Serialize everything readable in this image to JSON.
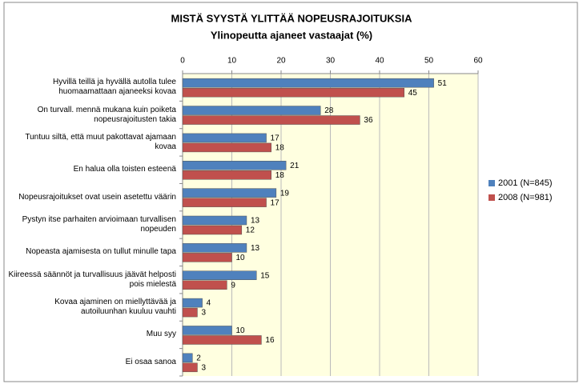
{
  "chart_data": {
    "type": "bar",
    "orientation": "horizontal",
    "title": "MISTÄ SYYSTÄ YLITTÄÄ NOPEUSRAJOITUKSIA",
    "subtitle": "Ylinopeutta ajaneet vastaajat (%)",
    "categories": [
      "Hyvillä teillä ja hyvällä autolla tulee huomaamattaan ajaneeksi kovaa",
      "On turvall. mennä mukana kuin poiketa nopeusrajoitusten takia",
      "Tuntuu siltä, että muut pakottavat ajamaan kovaa",
      "En halua olla toisten esteenä",
      "Nopeusrajoitukset ovat usein asetettu väärin",
      "Pystyn itse parhaiten arvioimaan turvallisen nopeuden",
      "Nopeasta ajamisesta on tullut minulle tapa",
      "Kiireessä säännöt ja turvallisuus jäävät helposti pois mielestä",
      "Kovaa ajaminen on miellyttävää ja autoiluunhan kuuluu vauhti",
      "Muu syy",
      "Ei osaa sanoa"
    ],
    "series": [
      {
        "name": "2001 (N=845)",
        "color": "#4f81bd",
        "values": [
          51,
          28,
          17,
          21,
          19,
          13,
          13,
          15,
          4,
          10,
          2
        ]
      },
      {
        "name": "2008 (N=981)",
        "color": "#c0504d",
        "values": [
          45,
          36,
          18,
          18,
          17,
          12,
          10,
          9,
          3,
          16,
          3
        ]
      }
    ],
    "xlim": [
      0,
      60
    ],
    "xticks": [
      0,
      10,
      20,
      30,
      40,
      50,
      60
    ],
    "grid": true,
    "legend": "right"
  }
}
